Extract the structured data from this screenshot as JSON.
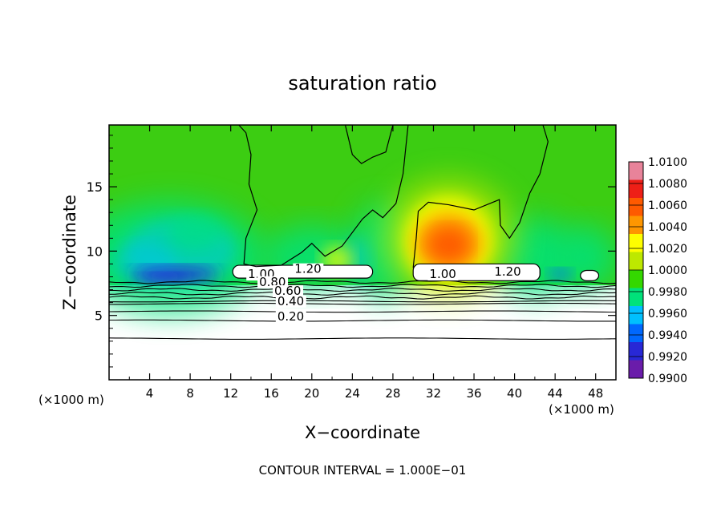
{
  "chart_data": {
    "type": "heatmap",
    "title": "saturation ratio",
    "xlabel": "X−coordinate",
    "ylabel": "Z−coordinate",
    "xunit_left": "(×1000 m)",
    "xunit_right": "(×1000 m)",
    "footer": "CONTOUR INTERVAL = 1.000E−01",
    "xlim": [
      0,
      50
    ],
    "ylim": [
      0,
      19.8
    ],
    "x_ticks": [
      4,
      8,
      12,
      16,
      20,
      24,
      28,
      32,
      36,
      40,
      44,
      48
    ],
    "x_tick_labels": [
      "4",
      "8",
      "12",
      "16",
      "20",
      "24",
      "28",
      "32",
      "36",
      "40",
      "44",
      "48"
    ],
    "y_ticks": [
      5,
      10,
      15
    ],
    "y_tick_labels": [
      "5",
      "10",
      "15"
    ],
    "colorbar": {
      "min": 0.99,
      "max": 1.01,
      "tick_labels": [
        "1.0100",
        "1.0080",
        "1.0060",
        "1.0040",
        "1.0020",
        "1.0000",
        "0.9980",
        "0.9960",
        "0.9940",
        "0.9920",
        "0.9900"
      ],
      "colors": [
        "#e8839a",
        "#ee1f17",
        "#fe5a00",
        "#fe9600",
        "#fefe00",
        "#bde800",
        "#34d800",
        "#00e27a",
        "#00c0fe",
        "#0068fe",
        "#2828d6",
        "#6a1caa"
      ]
    },
    "contour_labels": [
      {
        "text": "1.20",
        "x": 18.3,
        "z": 8.3
      },
      {
        "text": "1.20",
        "x": 38.0,
        "z": 8.1
      },
      {
        "text": "1.00",
        "x": 31.6,
        "z": 7.9
      },
      {
        "text": "1.00",
        "x": 13.7,
        "z": 7.9
      },
      {
        "text": "0.80",
        "x": 14.8,
        "z": 7.3
      },
      {
        "text": "0.60",
        "x": 16.3,
        "z": 6.6
      },
      {
        "text": "0.40",
        "x": 16.6,
        "z": 5.8
      },
      {
        "text": "0.20",
        "x": 16.6,
        "z": 4.6
      }
    ],
    "contour_lines_z": [
      7.6,
      7.3,
      7.0,
      6.7,
      6.4,
      6.1,
      5.9,
      5.3,
      4.6,
      3.2
    ],
    "regions": {
      "background_value": 1.0,
      "unsaturated_band_z": [
        7.5,
        19.8
      ],
      "max_center": {
        "x": 33.5,
        "z": 10.5,
        "value": 1.0062
      },
      "min_centers": [
        {
          "x": 6.5,
          "z": 8.2,
          "value": 0.993
        },
        {
          "x": 44.5,
          "z": 8.2,
          "value": 0.995
        }
      ],
      "cloud_regions_white": [
        {
          "x": [
            12.2,
            26.0
          ],
          "z": [
            7.9,
            8.9
          ]
        },
        {
          "x": [
            30.0,
            42.5
          ],
          "z": [
            7.7,
            9.0
          ]
        },
        {
          "x": [
            46.5,
            48.3
          ],
          "z": [
            7.7,
            8.5
          ]
        }
      ]
    }
  }
}
